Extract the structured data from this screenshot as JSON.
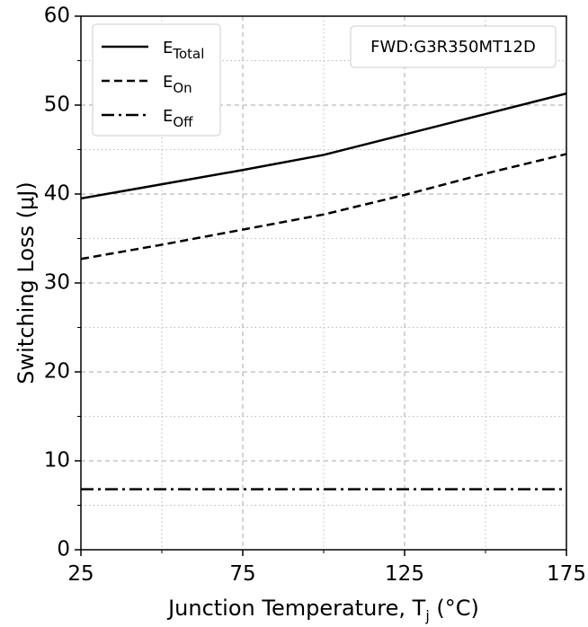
{
  "chart_data": {
    "type": "line",
    "xlabel": {
      "text": "Junction Temperature, T",
      "subscript": "j",
      "suffix": " (°C)"
    },
    "ylabel": "Switching Loss (μJ)",
    "annotation": "FWD:G3R350MT12D",
    "x": [
      25,
      50,
      75,
      100,
      125,
      150,
      175
    ],
    "series": [
      {
        "name": "E",
        "subscript": "Total",
        "color": "#000000",
        "linestyle": "solid",
        "values": [
          39.5,
          41.1,
          42.7,
          44.4,
          46.7,
          49.0,
          51.3
        ]
      },
      {
        "name": "E",
        "subscript": "On",
        "color": "#000000",
        "linestyle": "dashed",
        "values": [
          32.7,
          34.3,
          36.0,
          37.7,
          39.9,
          42.3,
          44.5
        ]
      },
      {
        "name": "E",
        "subscript": "Off",
        "color": "#000000",
        "linestyle": "dashdot",
        "values": [
          6.8,
          6.8,
          6.8,
          6.8,
          6.8,
          6.8,
          6.8
        ]
      }
    ],
    "xlim": [
      25,
      175
    ],
    "xticks": [
      25,
      75,
      125,
      175
    ],
    "xminorticks": [
      50,
      100,
      150
    ],
    "ylim": [
      0,
      60
    ],
    "yticks": [
      0,
      10,
      20,
      30,
      40,
      50,
      60
    ],
    "yminorticks": [
      5,
      15,
      25,
      35,
      45,
      55
    ],
    "grid": true,
    "legend": "upper left"
  }
}
